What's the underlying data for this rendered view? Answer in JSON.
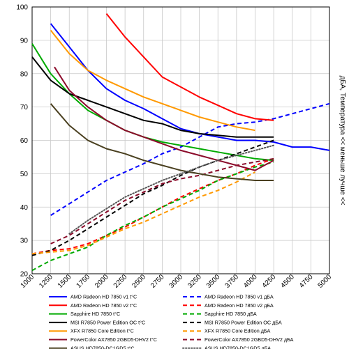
{
  "chart_data": {
    "type": "line",
    "title": "",
    "xlabel": "",
    "ylabel": "дБА, Температура << меньше лучше <<",
    "xlim": [
      1000,
      5000
    ],
    "ylim": [
      20,
      100
    ],
    "x_ticks": [
      1000,
      1250,
      1500,
      1750,
      2000,
      2250,
      2500,
      2750,
      3000,
      3250,
      3500,
      3750,
      4000,
      4250,
      4500,
      4750,
      5000
    ],
    "y_ticks": [
      20,
      30,
      40,
      50,
      60,
      70,
      80,
      90,
      100
    ],
    "grid": true,
    "legend_position": "bottom",
    "series": [
      {
        "name": "AMD Radeon HD 7850 v1 t°C",
        "color": "#0000ff",
        "style": "solid",
        "points": [
          [
            1250,
            95
          ],
          [
            1500,
            88
          ],
          [
            1750,
            81
          ],
          [
            2000,
            75.5
          ],
          [
            2250,
            72
          ],
          [
            2500,
            69.5
          ],
          [
            2750,
            66.5
          ],
          [
            3000,
            63.5
          ],
          [
            3250,
            62
          ],
          [
            3500,
            61
          ],
          [
            3750,
            60
          ],
          [
            4000,
            60
          ],
          [
            4250,
            59.5
          ],
          [
            4500,
            58
          ],
          [
            4750,
            58
          ],
          [
            5000,
            57
          ]
        ]
      },
      {
        "name": "AMD Radeon HD 7850 v1 дБА",
        "color": "#0000ff",
        "style": "dashed",
        "points": [
          [
            1250,
            37.5
          ],
          [
            1500,
            41
          ],
          [
            1750,
            44.5
          ],
          [
            2000,
            48
          ],
          [
            2250,
            50.5
          ],
          [
            2500,
            53
          ],
          [
            2750,
            56
          ],
          [
            3000,
            58
          ],
          [
            3250,
            61
          ],
          [
            3500,
            64
          ],
          [
            3750,
            65
          ],
          [
            4000,
            65.5
          ],
          [
            4250,
            66.5
          ],
          [
            4500,
            68
          ],
          [
            4750,
            69.5
          ],
          [
            5000,
            71
          ]
        ]
      },
      {
        "name": "AMD Radeon HD 7850 v2 t°C",
        "color": "#ff0000",
        "style": "solid",
        "points": [
          [
            2000,
            98
          ],
          [
            2250,
            91
          ],
          [
            2500,
            85
          ],
          [
            2750,
            79
          ],
          [
            3000,
            76
          ],
          [
            3250,
            73
          ],
          [
            3500,
            70.5
          ],
          [
            3750,
            68
          ],
          [
            4000,
            66.5
          ],
          [
            4250,
            66
          ]
        ]
      },
      {
        "name": "AMD Radeon HD 7850 v2 дБА",
        "color": "#ff0000",
        "style": "dashed",
        "points": [
          [
            1000,
            26
          ],
          [
            1250,
            27
          ],
          [
            1500,
            27.5
          ],
          [
            1750,
            29
          ],
          [
            2000,
            31.5
          ],
          [
            2250,
            34
          ],
          [
            2500,
            37
          ],
          [
            2750,
            40
          ],
          [
            3000,
            43
          ],
          [
            3250,
            45.5
          ],
          [
            3500,
            48
          ],
          [
            3750,
            50
          ],
          [
            4000,
            52.5
          ],
          [
            4250,
            54.5
          ]
        ]
      },
      {
        "name": "Sapphire HD 7850 t°C",
        "color": "#00aa00",
        "style": "solid",
        "points": [
          [
            1000,
            89
          ],
          [
            1250,
            80
          ],
          [
            1500,
            74
          ],
          [
            1750,
            69
          ],
          [
            2000,
            66
          ],
          [
            2250,
            63
          ],
          [
            2500,
            61
          ],
          [
            2750,
            59.5
          ],
          [
            3000,
            58.5
          ],
          [
            3250,
            57.5
          ],
          [
            3500,
            56.5
          ],
          [
            3750,
            55.5
          ],
          [
            4000,
            54.5
          ],
          [
            4250,
            54
          ]
        ]
      },
      {
        "name": "Sapphire HD 7850 дБА",
        "color": "#00aa00",
        "style": "dashed",
        "points": [
          [
            1000,
            21
          ],
          [
            1250,
            24
          ],
          [
            1500,
            26
          ],
          [
            1750,
            28
          ],
          [
            2000,
            31.5
          ],
          [
            2250,
            34.5
          ],
          [
            2500,
            37
          ],
          [
            2750,
            40
          ],
          [
            3000,
            42.5
          ],
          [
            3250,
            45
          ],
          [
            3500,
            48
          ],
          [
            3750,
            50
          ],
          [
            4000,
            52
          ],
          [
            4250,
            53.5
          ]
        ]
      },
      {
        "name": "MSI R7850 Power Edition OC t°C",
        "color": "#000000",
        "style": "solid",
        "points": [
          [
            1000,
            85
          ],
          [
            1250,
            78
          ],
          [
            1500,
            74
          ],
          [
            1750,
            72
          ],
          [
            2000,
            70
          ],
          [
            2250,
            68
          ],
          [
            2500,
            66
          ],
          [
            2750,
            65
          ],
          [
            3000,
            63
          ],
          [
            3250,
            62
          ],
          [
            3500,
            61.5
          ],
          [
            3750,
            61
          ],
          [
            4000,
            61
          ],
          [
            4250,
            61
          ]
        ]
      },
      {
        "name": "MSI R7850 Power Edition OC дБА",
        "color": "#000000",
        "style": "dashed",
        "points": [
          [
            1000,
            25.5
          ],
          [
            1250,
            27
          ],
          [
            1500,
            30
          ],
          [
            1750,
            33.5
          ],
          [
            2000,
            37
          ],
          [
            2250,
            40.5
          ],
          [
            2500,
            44
          ],
          [
            2750,
            46.5
          ],
          [
            3000,
            49.5
          ],
          [
            3250,
            52
          ],
          [
            3500,
            54
          ],
          [
            3750,
            56
          ],
          [
            4000,
            58
          ],
          [
            4250,
            60
          ]
        ]
      },
      {
        "name": "XFX R7850 Core Edition t°C",
        "color": "#ff9900",
        "style": "solid",
        "points": [
          [
            1250,
            93
          ],
          [
            1500,
            86
          ],
          [
            1750,
            81
          ],
          [
            2000,
            78
          ],
          [
            2250,
            75.5
          ],
          [
            2500,
            73
          ],
          [
            2750,
            71
          ],
          [
            3000,
            69
          ],
          [
            3250,
            67
          ],
          [
            3500,
            65.5
          ],
          [
            3750,
            64
          ],
          [
            4000,
            63
          ]
        ]
      },
      {
        "name": "XFX R7850 Core Edition дБА",
        "color": "#ff9900",
        "style": "dashed",
        "points": [
          [
            1000,
            26
          ],
          [
            1250,
            26.5
          ],
          [
            1500,
            27
          ],
          [
            1750,
            28.5
          ],
          [
            2000,
            31
          ],
          [
            2250,
            33.5
          ],
          [
            2500,
            35.5
          ],
          [
            2750,
            38
          ],
          [
            3000,
            40.5
          ],
          [
            3250,
            43
          ],
          [
            3500,
            45
          ],
          [
            3750,
            47.5
          ],
          [
            4000,
            50.5
          ]
        ]
      },
      {
        "name": "PowerColor AX7850 2GBD5-DHV2 t°C",
        "color": "#8b0a2a",
        "style": "solid",
        "points": [
          [
            1300,
            82
          ],
          [
            1500,
            75
          ],
          [
            1750,
            70
          ],
          [
            2000,
            66
          ],
          [
            2250,
            63
          ],
          [
            2500,
            61
          ],
          [
            2750,
            59
          ],
          [
            3000,
            57
          ],
          [
            3250,
            55.5
          ],
          [
            3500,
            54
          ],
          [
            3750,
            52.5
          ],
          [
            4000,
            51
          ],
          [
            4250,
            54
          ]
        ]
      },
      {
        "name": "PowerColor AX7850 2GBD5-DHV2 дБА",
        "color": "#8b0a2a",
        "style": "dashed",
        "points": [
          [
            1250,
            29
          ],
          [
            1500,
            31.5
          ],
          [
            1750,
            35
          ],
          [
            2000,
            38.5
          ],
          [
            2250,
            42
          ],
          [
            2500,
            44.5
          ],
          [
            2750,
            47
          ],
          [
            3000,
            48.5
          ],
          [
            3250,
            49.5
          ],
          [
            3500,
            51
          ],
          [
            3750,
            52.5
          ],
          [
            4000,
            53.5
          ],
          [
            4250,
            54.5
          ]
        ]
      },
      {
        "name": "ASUS HD7850-DC1GD5 t°C",
        "color": "#4a4020",
        "style": "solid",
        "points": [
          [
            1250,
            71
          ],
          [
            1500,
            64.5
          ],
          [
            1750,
            60
          ],
          [
            2000,
            57.5
          ],
          [
            2250,
            56
          ],
          [
            2500,
            54
          ],
          [
            2750,
            52.5
          ],
          [
            3000,
            51
          ],
          [
            3250,
            50
          ],
          [
            3500,
            49
          ],
          [
            3750,
            48.5
          ],
          [
            4000,
            48
          ],
          [
            4250,
            48
          ]
        ]
      },
      {
        "name": "ASUS HD7850-DC1GD5 дБА",
        "color": "#555555",
        "style": "dotted",
        "points": [
          [
            1500,
            32
          ],
          [
            1750,
            36
          ],
          [
            2000,
            39.5
          ],
          [
            2250,
            43
          ],
          [
            2500,
            45.5
          ],
          [
            2750,
            48
          ],
          [
            3000,
            50
          ],
          [
            3250,
            52
          ],
          [
            3500,
            54
          ],
          [
            3750,
            55.5
          ],
          [
            4000,
            57
          ],
          [
            4250,
            58.5
          ]
        ]
      }
    ]
  }
}
